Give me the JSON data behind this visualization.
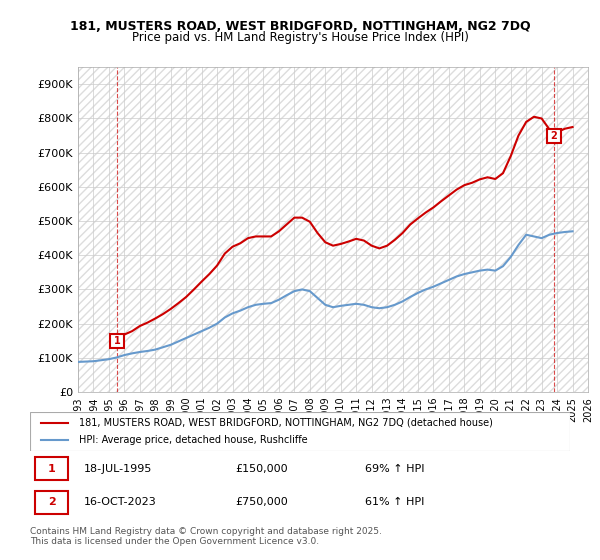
{
  "title1": "181, MUSTERS ROAD, WEST BRIDGFORD, NOTTINGHAM, NG2 7DQ",
  "title2": "Price paid vs. HM Land Registry's House Price Index (HPI)",
  "xlabel": "",
  "ylabel": "",
  "ylim": [
    0,
    950000
  ],
  "yticks": [
    0,
    100000,
    200000,
    300000,
    400000,
    500000,
    600000,
    700000,
    800000,
    900000
  ],
  "ytick_labels": [
    "£0",
    "£100K",
    "£200K",
    "£300K",
    "£400K",
    "£500K",
    "£600K",
    "£700K",
    "£800K",
    "£900K"
  ],
  "xlim_start": 1993,
  "xlim_end": 2026,
  "xticks": [
    1993,
    1994,
    1995,
    1996,
    1997,
    1998,
    1999,
    2000,
    2001,
    2002,
    2003,
    2004,
    2005,
    2006,
    2007,
    2008,
    2009,
    2010,
    2011,
    2012,
    2013,
    2014,
    2015,
    2016,
    2017,
    2018,
    2019,
    2020,
    2021,
    2022,
    2023,
    2024,
    2025,
    2026
  ],
  "sale1_x": 1995.54,
  "sale1_y": 150000,
  "sale2_x": 2023.79,
  "sale2_y": 750000,
  "sale1_label": "1",
  "sale2_label": "2",
  "legend_line1": "181, MUSTERS ROAD, WEST BRIDGFORD, NOTTINGHAM, NG2 7DQ (detached house)",
  "legend_line2": "HPI: Average price, detached house, Rushcliffe",
  "annotation1": "1     18-JUL-1995     £150,000     69% ↑ HPI",
  "annotation2": "2     16-OCT-2023     £750,000     61% ↑ HPI",
  "footnote": "Contains HM Land Registry data © Crown copyright and database right 2025.\nThis data is licensed under the Open Government Licence v3.0.",
  "line_color_red": "#cc0000",
  "line_color_blue": "#6699cc",
  "bg_hatch_color": "#dddddd",
  "grid_color": "#cccccc",
  "hpi_years": [
    1993,
    1993.5,
    1994,
    1994.5,
    1995,
    1995.5,
    1996,
    1996.5,
    1997,
    1997.5,
    1998,
    1998.5,
    1999,
    1999.5,
    2000,
    2000.5,
    2001,
    2001.5,
    2002,
    2002.5,
    2003,
    2003.5,
    2004,
    2004.5,
    2005,
    2005.5,
    2006,
    2006.5,
    2007,
    2007.5,
    2008,
    2008.5,
    2009,
    2009.5,
    2010,
    2010.5,
    2011,
    2011.5,
    2012,
    2012.5,
    2013,
    2013.5,
    2014,
    2014.5,
    2015,
    2015.5,
    2016,
    2016.5,
    2017,
    2017.5,
    2018,
    2018.5,
    2019,
    2019.5,
    2020,
    2020.5,
    2021,
    2021.5,
    2022,
    2022.5,
    2023,
    2023.5,
    2024,
    2024.5,
    2025
  ],
  "hpi_values": [
    88000,
    89000,
    90000,
    93000,
    96000,
    101000,
    108000,
    113000,
    117000,
    120000,
    124000,
    131000,
    138000,
    148000,
    158000,
    168000,
    178000,
    188000,
    200000,
    218000,
    230000,
    238000,
    248000,
    255000,
    258000,
    260000,
    270000,
    283000,
    295000,
    300000,
    295000,
    275000,
    255000,
    248000,
    252000,
    255000,
    258000,
    255000,
    248000,
    245000,
    248000,
    255000,
    265000,
    278000,
    290000,
    300000,
    308000,
    318000,
    328000,
    338000,
    345000,
    350000,
    355000,
    358000,
    355000,
    368000,
    395000,
    430000,
    460000,
    455000,
    450000,
    460000,
    465000,
    468000,
    470000
  ],
  "price_years": [
    1993,
    1993.5,
    1994,
    1994.5,
    1995,
    1995.54,
    1996,
    1996.5,
    1997,
    1997.5,
    1998,
    1998.5,
    1999,
    1999.5,
    2000,
    2000.5,
    2001,
    2001.5,
    2002,
    2002.5,
    2003,
    2003.5,
    2004,
    2004.5,
    2005,
    2005.5,
    2006,
    2006.5,
    2007,
    2007.5,
    2008,
    2008.5,
    2009,
    2009.5,
    2010,
    2010.5,
    2011,
    2011.5,
    2012,
    2012.5,
    2013,
    2013.5,
    2014,
    2014.5,
    2015,
    2015.5,
    2016,
    2016.5,
    2017,
    2017.5,
    2018,
    2018.5,
    2019,
    2019.5,
    2020,
    2020.5,
    2021,
    2021.5,
    2022,
    2022.5,
    2023,
    2023.79,
    2024,
    2024.5,
    2025
  ],
  "price_values": [
    null,
    null,
    null,
    null,
    null,
    150000,
    168000,
    178000,
    193000,
    203000,
    215000,
    228000,
    243000,
    260000,
    278000,
    300000,
    323000,
    345000,
    370000,
    405000,
    425000,
    435000,
    450000,
    455000,
    455000,
    455000,
    470000,
    490000,
    510000,
    510000,
    498000,
    465000,
    438000,
    428000,
    433000,
    440000,
    448000,
    443000,
    428000,
    420000,
    428000,
    445000,
    465000,
    490000,
    508000,
    525000,
    540000,
    558000,
    575000,
    592000,
    605000,
    612000,
    622000,
    628000,
    623000,
    640000,
    690000,
    750000,
    790000,
    805000,
    800000,
    750000,
    760000,
    770000,
    775000
  ]
}
